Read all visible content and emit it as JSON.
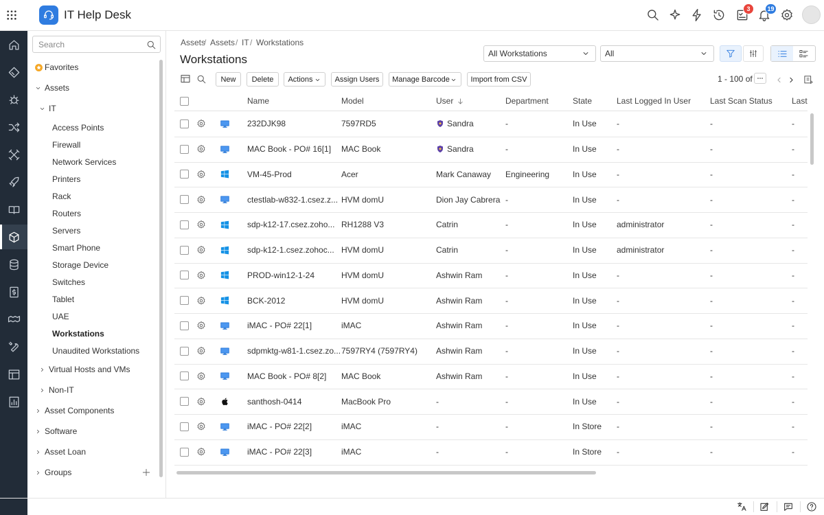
{
  "header": {
    "app_title": "IT Help Desk",
    "badges": {
      "tasks": 3,
      "notifications": 19
    }
  },
  "sidebar": {
    "search_placeholder": "Search",
    "items": [
      "Favorites",
      "Assets",
      "IT",
      "Access Points",
      "Firewall",
      "Network Services",
      "Printers",
      "Rack",
      "Routers",
      "Servers",
      "Smart Phone",
      "Storage Device",
      "Switches",
      "Tablet",
      "UAE",
      "Workstations",
      "Unaudited Workstations",
      "Virtual Hosts and VMs",
      "Non-IT",
      "Asset Components",
      "Software",
      "Asset Loan",
      "Groups"
    ]
  },
  "breadcrumb": {
    "items": [
      "Assets",
      "Assets",
      "IT",
      "Workstations"
    ],
    "separator": "/"
  },
  "page_title": "Workstations",
  "filters": [
    "All Workstations",
    "All"
  ],
  "toolbar": {
    "buttons": [
      "New",
      "Delete",
      "Actions",
      "Assign Users",
      "Manage Barcode",
      "Import from CSV"
    ],
    "pagination": "1 - 100 of"
  },
  "table": {
    "columns": [
      "Name",
      "Model",
      "User",
      "Department",
      "State",
      "Last Logged In User",
      "Last Scan Status",
      "Last"
    ],
    "rows": [
      [
        "232DJK98",
        "7597RD5",
        "Sandra",
        "-",
        "In Use",
        "-",
        "-",
        "-"
      ],
      [
        "MAC Book - PO# 16[1]",
        "MAC Book",
        "Sandra",
        "-",
        "In Use",
        "-",
        "-",
        "-"
      ],
      [
        "VM-45-Prod",
        "Acer",
        "Mark Canaway",
        "Engineering",
        "In Use",
        "-",
        "-",
        "-"
      ],
      [
        "ctestlab-w832-1.csez.z...",
        "HVM domU",
        "Dion Jay Cabrera",
        "-",
        "In Use",
        "-",
        "-",
        "-"
      ],
      [
        "sdp-k12-17.csez.zoho...",
        "RH1288 V3",
        "Catrin",
        "-",
        "In Use",
        "administrator",
        "-",
        "-"
      ],
      [
        "sdp-k12-1.csez.zohoc...",
        "HVM domU",
        "Catrin",
        "-",
        "In Use",
        "administrator",
        "-",
        "-"
      ],
      [
        "PROD-win12-1-24",
        "HVM domU",
        "Ashwin Ram",
        "-",
        "In Use",
        "-",
        "-",
        "-"
      ],
      [
        "BCK-2012",
        "HVM domU",
        "Ashwin Ram",
        "-",
        "In Use",
        "-",
        "-",
        "-"
      ],
      [
        "iMAC - PO# 22[1]",
        "iMAC",
        "Ashwin Ram",
        "-",
        "In Use",
        "-",
        "-",
        "-"
      ],
      [
        "sdpmktg-w81-1.csez.zo...",
        "7597RY4 (7597RY4)",
        "Ashwin Ram",
        "-",
        "In Use",
        "-",
        "-",
        "-"
      ],
      [
        "MAC Book - PO# 8[2]",
        "MAC Book",
        "Ashwin Ram",
        "-",
        "In Use",
        "-",
        "-",
        "-"
      ],
      [
        "santhosh-0414",
        "MacBook Pro",
        "-",
        "-",
        "In Use",
        "-",
        "-",
        "-"
      ],
      [
        "iMAC - PO# 22[2]",
        "iMAC",
        "-",
        "-",
        "In Store",
        "-",
        "-",
        "-"
      ],
      [
        "iMAC - PO# 22[3]",
        "iMAC",
        "-",
        "-",
        "In Store",
        "-",
        "-",
        "-"
      ]
    ]
  }
}
